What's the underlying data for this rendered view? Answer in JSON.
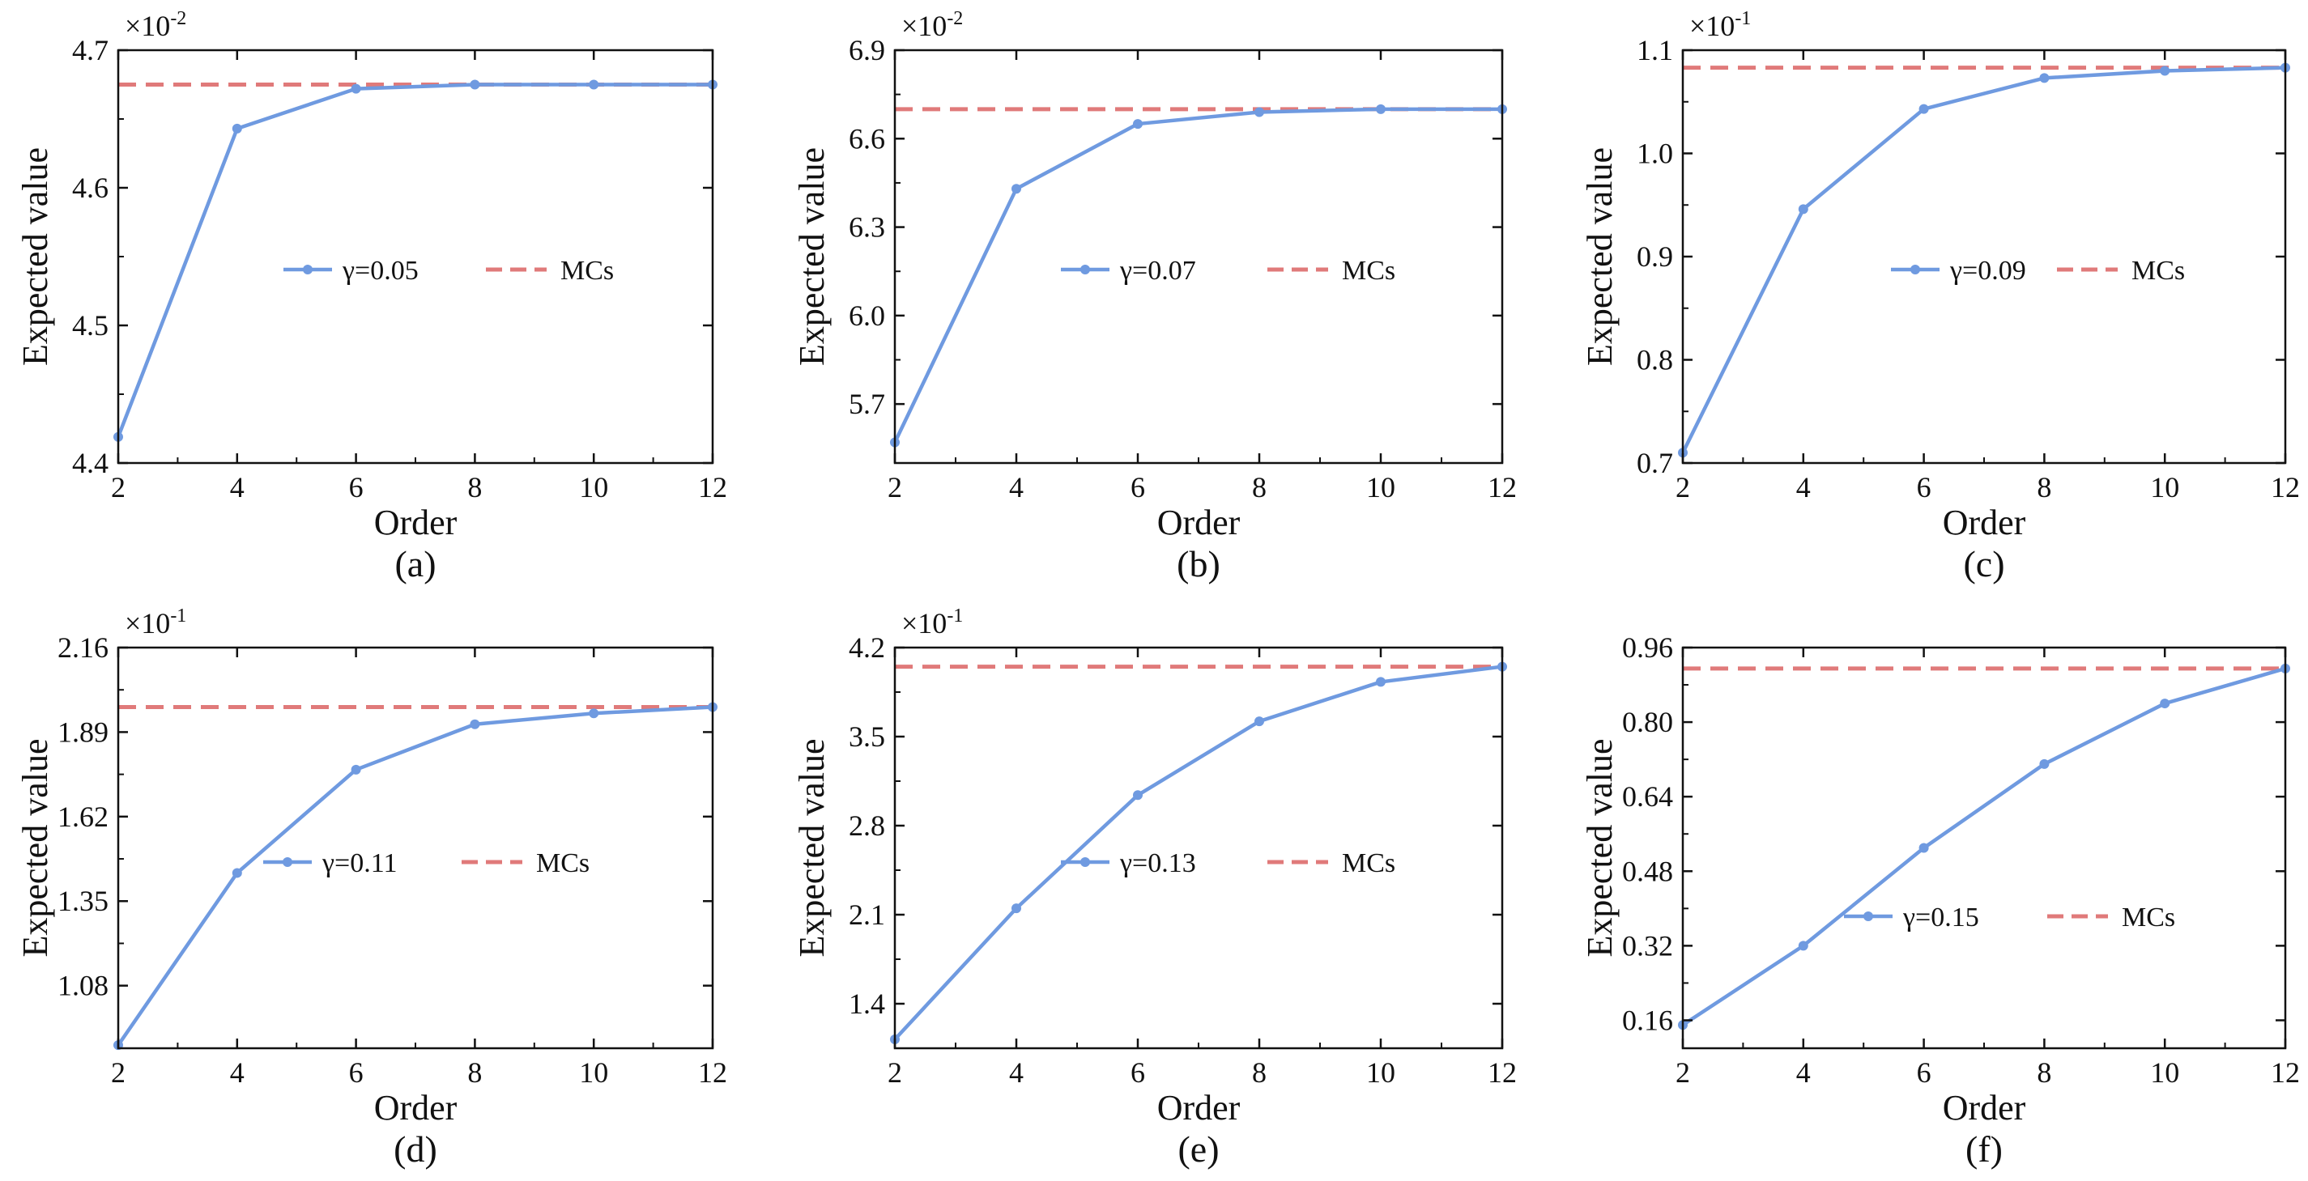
{
  "colors": {
    "series": "#6f9ae0",
    "mcs": "#e07a7a",
    "axis": "#111111"
  },
  "chart_data": [
    {
      "type": "line",
      "panel_label": "(a)",
      "xlabel": "Order",
      "ylabel": "Expected value",
      "scale_label": "×10",
      "scale_exp": "-2",
      "x": [
        2,
        4,
        6,
        8,
        10,
        12
      ],
      "series": [
        {
          "name": "γ=0.05",
          "style": "solid-markers",
          "values": [
            4.419,
            4.643,
            4.672,
            4.675,
            4.675,
            4.675
          ]
        },
        {
          "name": "MCs",
          "style": "dashed",
          "constant": 4.675
        }
      ],
      "xlim": [
        2,
        12
      ],
      "ylim": [
        4.4,
        4.7
      ],
      "xticks": [
        "2",
        "4",
        "6",
        "8",
        "10",
        "12"
      ],
      "yticks": [
        {
          "value": 4.4,
          "label": "4.4"
        },
        {
          "value": 4.5,
          "label": "4.5"
        },
        {
          "value": 4.6,
          "label": "4.6"
        },
        {
          "value": 4.7,
          "label": "4.7"
        }
      ],
      "legend_position": "center-right"
    },
    {
      "type": "line",
      "panel_label": "(b)",
      "xlabel": "Order",
      "ylabel": "Expected value",
      "scale_label": "×10",
      "scale_exp": "-2",
      "x": [
        2,
        4,
        6,
        8,
        10,
        12
      ],
      "series": [
        {
          "name": "γ=0.07",
          "style": "solid-markers",
          "values": [
            5.57,
            6.43,
            6.65,
            6.69,
            6.7,
            6.7
          ]
        },
        {
          "name": "MCs",
          "style": "dashed",
          "constant": 6.7
        }
      ],
      "xlim": [
        2,
        12
      ],
      "ylim": [
        5.5,
        6.9
      ],
      "xticks": [
        "2",
        "4",
        "6",
        "8",
        "10",
        "12"
      ],
      "yticks": [
        {
          "value": 5.7,
          "label": "5.7"
        },
        {
          "value": 6.0,
          "label": "6.0"
        },
        {
          "value": 6.3,
          "label": "6.3"
        },
        {
          "value": 6.6,
          "label": "6.6"
        },
        {
          "value": 6.9,
          "label": "6.9"
        }
      ],
      "legend_position": "center-right"
    },
    {
      "type": "line",
      "panel_label": "(c)",
      "xlabel": "Order",
      "ylabel": "Expected value",
      "scale_label": "×10",
      "scale_exp": "-1",
      "x": [
        2,
        4,
        6,
        8,
        10,
        12
      ],
      "series": [
        {
          "name": "γ=0.09",
          "style": "solid-markers",
          "values": [
            0.71,
            0.946,
            1.043,
            1.073,
            1.08,
            1.083
          ]
        },
        {
          "name": "MCs",
          "style": "dashed",
          "constant": 1.083
        }
      ],
      "xlim": [
        2,
        12
      ],
      "ylim": [
        0.7,
        1.1
      ],
      "xticks": [
        "2",
        "4",
        "6",
        "8",
        "10",
        "12"
      ],
      "yticks": [
        {
          "value": 0.7,
          "label": "0.7"
        },
        {
          "value": 0.8,
          "label": "0.8"
        },
        {
          "value": 0.9,
          "label": "0.9"
        },
        {
          "value": 1.0,
          "label": "1.0"
        },
        {
          "value": 1.1,
          "label": "1.1"
        }
      ],
      "legend_position": "center-right"
    },
    {
      "type": "line",
      "panel_label": "(d)",
      "xlabel": "Order",
      "ylabel": "Expected value",
      "scale_label": "×10",
      "scale_exp": "-1",
      "x": [
        2,
        4,
        6,
        8,
        10,
        12
      ],
      "series": [
        {
          "name": "γ=0.11",
          "style": "solid-markers",
          "values": [
            0.89,
            1.44,
            1.77,
            1.915,
            1.95,
            1.97
          ]
        },
        {
          "name": "MCs",
          "style": "dashed",
          "constant": 1.97
        }
      ],
      "xlim": [
        2,
        12
      ],
      "ylim": [
        0.88,
        2.16
      ],
      "xticks": [
        "2",
        "4",
        "6",
        "8",
        "10",
        "12"
      ],
      "yticks": [
        {
          "value": 1.08,
          "label": "1.08"
        },
        {
          "value": 1.35,
          "label": "1.35"
        },
        {
          "value": 1.62,
          "label": "1.62"
        },
        {
          "value": 1.89,
          "label": "1.89"
        },
        {
          "value": 2.16,
          "label": "2.16"
        }
      ],
      "legend_position": "center-right"
    },
    {
      "type": "line",
      "panel_label": "(e)",
      "xlabel": "Order",
      "ylabel": "Expected value",
      "scale_label": "×10",
      "scale_exp": "-1",
      "x": [
        2,
        4,
        6,
        8,
        10,
        12
      ],
      "series": [
        {
          "name": "γ=0.13",
          "style": "solid-markers",
          "values": [
            1.12,
            2.15,
            3.04,
            3.62,
            3.93,
            4.05
          ]
        },
        {
          "name": "MCs",
          "style": "dashed",
          "constant": 4.05
        }
      ],
      "xlim": [
        2,
        12
      ],
      "ylim": [
        1.05,
        4.2
      ],
      "xticks": [
        "2",
        "4",
        "6",
        "8",
        "10",
        "12"
      ],
      "yticks": [
        {
          "value": 1.4,
          "label": "1.4"
        },
        {
          "value": 2.1,
          "label": "2.1"
        },
        {
          "value": 2.8,
          "label": "2.8"
        },
        {
          "value": 3.5,
          "label": "3.5"
        },
        {
          "value": 4.2,
          "label": "4.2"
        }
      ],
      "legend_position": "center-right"
    },
    {
      "type": "line",
      "panel_label": "(f)",
      "xlabel": "Order",
      "ylabel": "Expected value",
      "scale_label": "",
      "scale_exp": "",
      "x": [
        2,
        4,
        6,
        8,
        10,
        12
      ],
      "series": [
        {
          "name": "γ=0.15",
          "style": "solid-markers",
          "values": [
            0.15,
            0.32,
            0.53,
            0.71,
            0.84,
            0.915
          ]
        },
        {
          "name": "MCs",
          "style": "dashed",
          "constant": 0.915
        }
      ],
      "xlim": [
        2,
        12
      ],
      "ylim": [
        0.1,
        0.96
      ],
      "xticks": [
        "2",
        "4",
        "6",
        "8",
        "10",
        "12"
      ],
      "yticks": [
        {
          "value": 0.16,
          "label": "0.16"
        },
        {
          "value": 0.32,
          "label": "0.32"
        },
        {
          "value": 0.48,
          "label": "0.48"
        },
        {
          "value": 0.64,
          "label": "0.64"
        },
        {
          "value": 0.8,
          "label": "0.80"
        },
        {
          "value": 0.96,
          "label": "0.96"
        }
      ],
      "legend_position": "center-right"
    }
  ]
}
